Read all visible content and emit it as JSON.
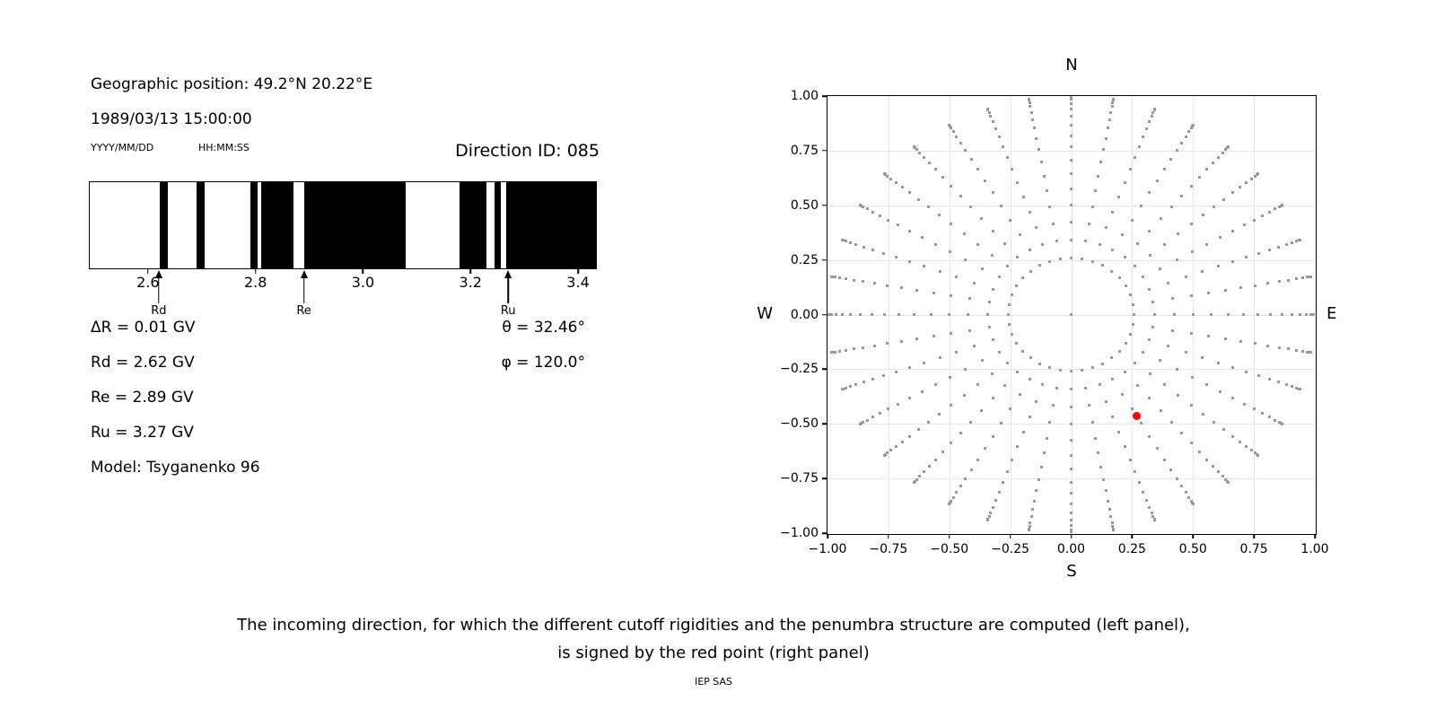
{
  "page": {
    "header": {
      "geographic_position": "Geographic position: 49.2°N 20.22°E",
      "datetime": "1989/03/13 15:00:00",
      "date_format": "YYYY/MM/DD",
      "time_format": "HH:MM:SS",
      "direction_id": "Direction ID: 085"
    },
    "cutoff_values": {
      "delta_r": "ΔR = 0.01 GV",
      "rd": "Rd = 2.62 GV",
      "re": "Re = 2.89 GV",
      "ru": "Ru = 3.27 GV",
      "model": "Model: Tsyganenko 96",
      "theta": "θ = 32.46°",
      "phi": "φ = 120.0°"
    },
    "caption": {
      "line1": "The incoming direction, for which the different cutoff rigidities and the penumbra structure are computed (left panel),",
      "line2": "is signed by the red point (right panel)",
      "credit": "IEP SAS"
    }
  },
  "chart_data": [
    {
      "type": "bar",
      "subtype": "penumbra-rigidity-band-plot",
      "title": "",
      "xlabel": "",
      "ylabel": "",
      "xlim": [
        2.49,
        3.435
      ],
      "x_ticks": [
        2.6,
        2.8,
        3.0,
        3.2,
        3.4
      ],
      "black_bands_GV": [
        [
          2.62,
          2.635
        ],
        [
          2.69,
          2.705
        ],
        [
          2.79,
          2.803
        ],
        [
          2.81,
          2.87
        ],
        [
          2.89,
          3.08
        ],
        [
          3.18,
          3.23
        ],
        [
          3.245,
          3.257
        ],
        [
          3.267,
          3.435
        ]
      ],
      "arrows": [
        {
          "label": "Rd",
          "x": 2.62
        },
        {
          "label": "Re",
          "x": 2.89
        },
        {
          "label": "Ru",
          "x": 3.27
        }
      ],
      "band_color": "#000000"
    },
    {
      "type": "scatter",
      "title": "",
      "xlim": [
        -1,
        1
      ],
      "ylim": [
        -1,
        1
      ],
      "grid": true,
      "grid_color": "#e7e7e7",
      "x_tick_values": [
        -1,
        -0.75,
        -0.5,
        -0.25,
        0,
        0.25,
        0.5,
        0.75,
        1
      ],
      "y_tick_values": [
        1,
        0.75,
        0.5,
        0.25,
        0,
        -0.25,
        -0.5,
        -0.75,
        -1
      ],
      "x_tick_labels": [
        "−1.00",
        "−0.75",
        "−0.50",
        "−0.25",
        "0.00",
        "0.25",
        "0.50",
        "0.75",
        "1.00"
      ],
      "y_tick_labels": [
        "1.00",
        "0.75",
        "0.50",
        "0.25",
        "0.00",
        "−0.25",
        "−0.50",
        "−0.75",
        "−1.00"
      ],
      "compass": {
        "top": "N",
        "bottom": "S",
        "left": "W",
        "right": "E"
      },
      "gray_points": {
        "azimuth_deg": {
          "start": 0,
          "step": 10,
          "count": 36
        },
        "zenith_deg": {
          "start": 15,
          "step": 5,
          "end": 90
        },
        "radius_rule": "sin(zenith)",
        "include_origin_dot": true,
        "color": "#999999"
      },
      "red_point": {
        "x": 0.268,
        "y": -0.465,
        "color": "#ff0000"
      }
    }
  ]
}
